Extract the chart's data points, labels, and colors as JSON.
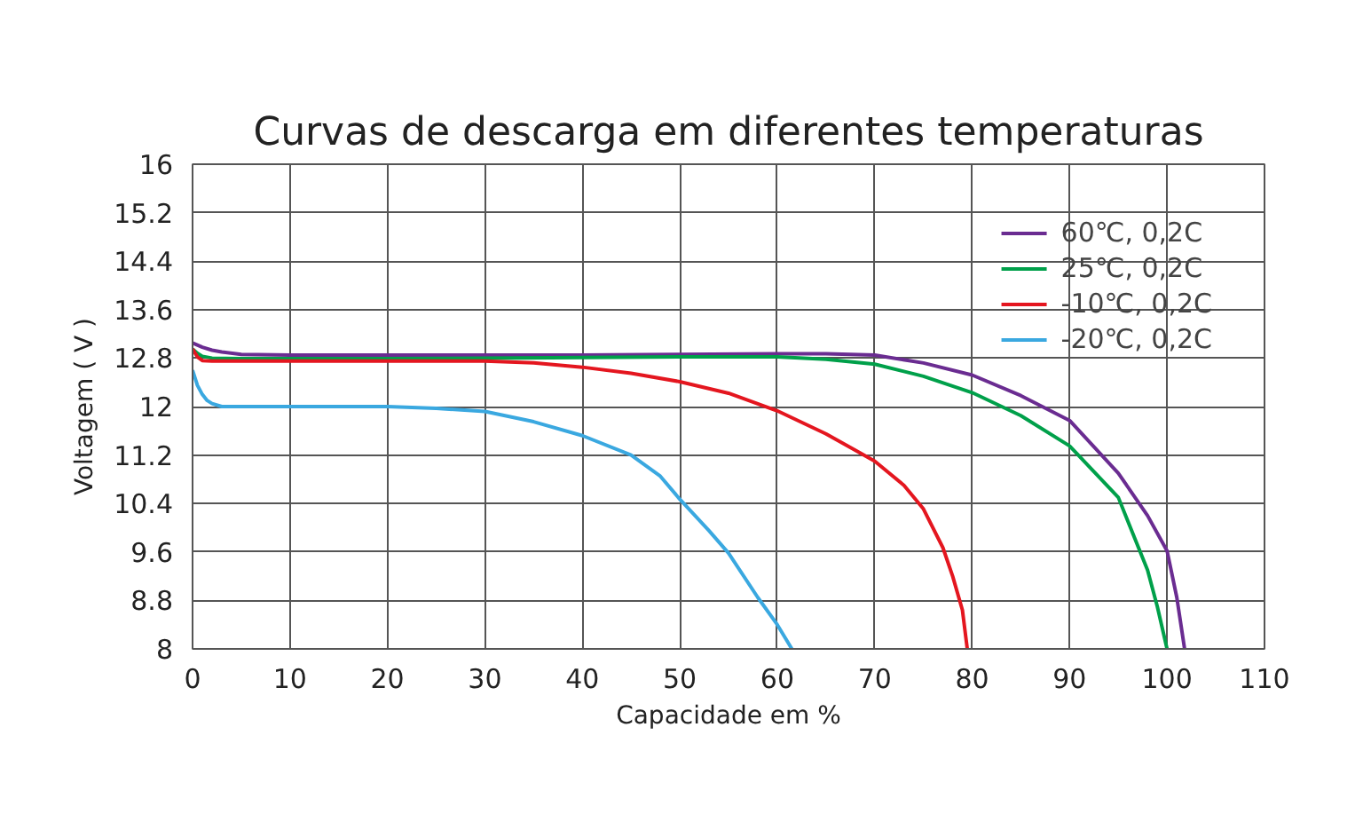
{
  "chart_data": {
    "type": "line",
    "title": "Curvas de descarga em diferentes temperaturas",
    "xlabel": "Capacidade em %",
    "ylabel": "Voltagem ( V )",
    "xlim": [
      0,
      110
    ],
    "xticks": [
      0,
      10,
      20,
      30,
      40,
      50,
      60,
      70,
      80,
      90,
      100,
      110
    ],
    "ylim": [
      8,
      16
    ],
    "yticks": [
      8,
      8.8,
      9.6,
      10.4,
      11.2,
      12,
      12.8,
      13.6,
      14.4,
      15.2,
      16
    ],
    "grid": true,
    "legend": "top right",
    "marker": "none",
    "line_style": "solid",
    "series": [
      {
        "name": "60℃, 0,2C",
        "color": "#6a2c91",
        "x": [
          0,
          1,
          2,
          3,
          5,
          10,
          20,
          30,
          40,
          50,
          60,
          65,
          70,
          75,
          80,
          85,
          90,
          95,
          98,
          100,
          101,
          101.8
        ],
        "values": [
          13.05,
          12.98,
          12.93,
          12.9,
          12.86,
          12.85,
          12.85,
          12.85,
          12.85,
          12.86,
          12.87,
          12.87,
          12.85,
          12.72,
          12.52,
          12.18,
          11.77,
          10.9,
          10.2,
          9.62,
          8.85,
          8
        ]
      },
      {
        "name": "25℃, 0,2C",
        "color": "#00a04a",
        "x": [
          0,
          0.5,
          1,
          2,
          5,
          10,
          20,
          30,
          40,
          50,
          60,
          65,
          70,
          75,
          80,
          85,
          90,
          95,
          98,
          99,
          100
        ],
        "values": [
          12.95,
          12.88,
          12.83,
          12.8,
          12.79,
          12.79,
          12.79,
          12.8,
          12.81,
          12.82,
          12.82,
          12.78,
          12.7,
          12.5,
          12.23,
          11.85,
          11.35,
          10.5,
          9.3,
          8.7,
          8
        ]
      },
      {
        "name": "-10℃, 0,2C",
        "color": "#e4161f",
        "x": [
          0,
          0.5,
          1,
          2,
          5,
          10,
          20,
          30,
          35,
          40,
          45,
          50,
          55,
          60,
          65,
          70,
          73,
          75,
          77,
          78,
          79,
          79.5
        ],
        "values": [
          12.95,
          12.82,
          12.76,
          12.75,
          12.75,
          12.75,
          12.75,
          12.75,
          12.72,
          12.65,
          12.55,
          12.41,
          12.22,
          11.93,
          11.55,
          11.1,
          10.7,
          10.31,
          9.67,
          9.2,
          8.64,
          8
        ]
      },
      {
        "name": "-20℃, 0,2C",
        "color": "#3aa8e0",
        "x": [
          0,
          0.5,
          1,
          1.5,
          2,
          3,
          5,
          10,
          20,
          25,
          30,
          35,
          40,
          45,
          48,
          50,
          53,
          55,
          58,
          60,
          61.5
        ],
        "values": [
          12.6,
          12.35,
          12.2,
          12.1,
          12.05,
          12.0,
          12.0,
          12.0,
          12.0,
          11.97,
          11.92,
          11.75,
          11.52,
          11.2,
          10.85,
          10.47,
          9.95,
          9.58,
          8.85,
          8.4,
          8
        ]
      }
    ]
  }
}
